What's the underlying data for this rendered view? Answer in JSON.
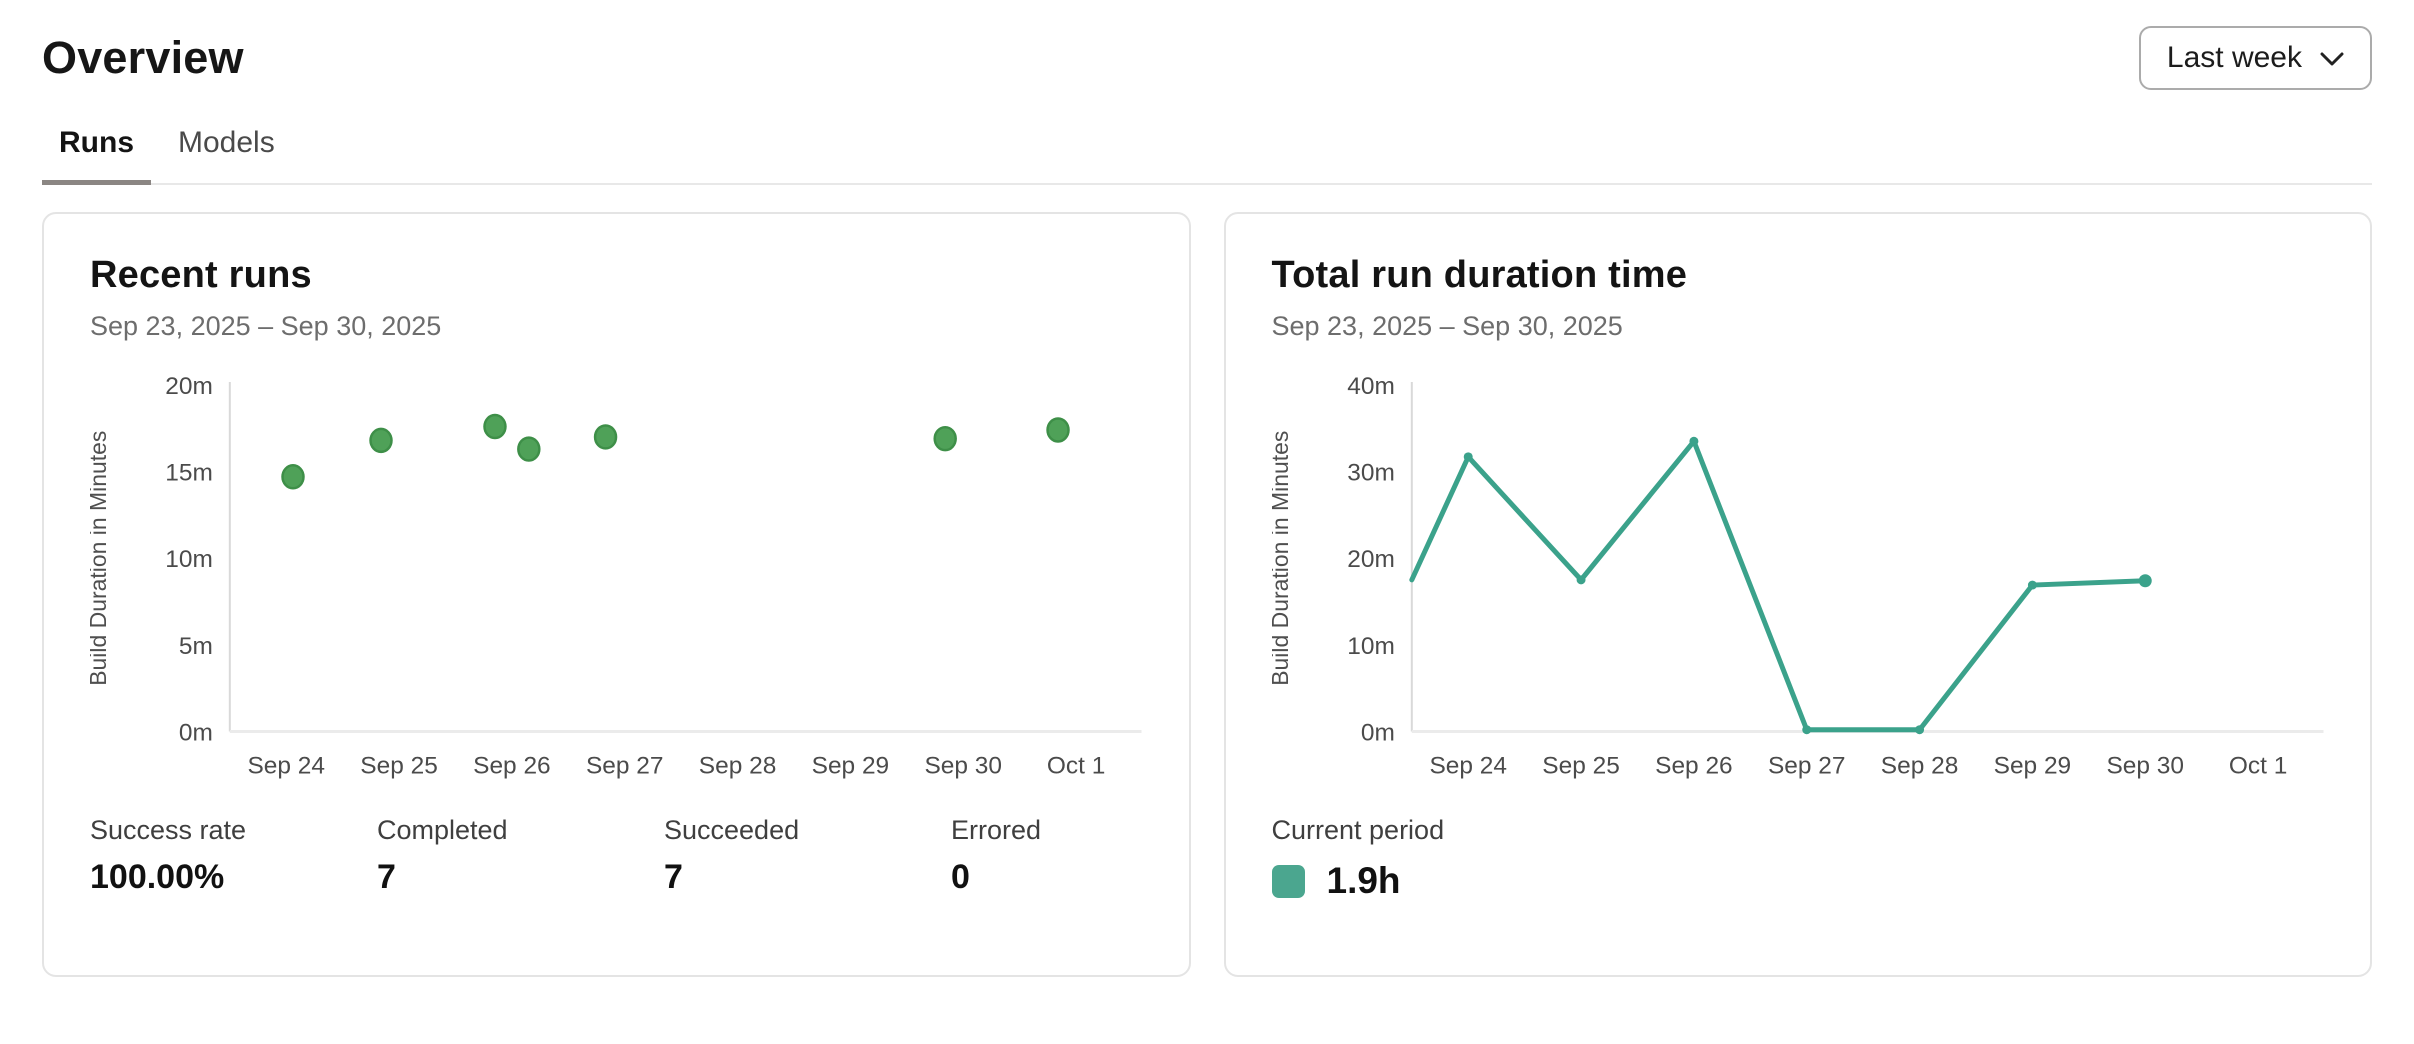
{
  "page": {
    "title": "Overview"
  },
  "period_selector": {
    "label": "Last week",
    "icon": "chevron-down-icon"
  },
  "tabs": [
    {
      "label": "Runs",
      "active": true
    },
    {
      "label": "Models",
      "active": false
    }
  ],
  "cards": {
    "recent_runs": {
      "title": "Recent runs",
      "date_range": "Sep 23, 2025 – Sep 30, 2025",
      "stats": [
        {
          "label": "Success rate",
          "value": "100.00%"
        },
        {
          "label": "Completed",
          "value": "7"
        },
        {
          "label": "Succeeded",
          "value": "7"
        },
        {
          "label": "Errored",
          "value": "0"
        }
      ]
    },
    "total_run_duration": {
      "title": "Total run duration time",
      "date_range": "Sep 23, 2025 – Sep 30, 2025",
      "legend": {
        "label": "Current period",
        "value": "1.9h",
        "color": "#4BA68F"
      }
    }
  },
  "chart_data": [
    {
      "id": "recent-runs-scatter",
      "type": "scatter",
      "title": "Recent runs",
      "xlabel": "",
      "ylabel": "Build Duration in Minutes",
      "unit": "minutes",
      "x_ticks": [
        "Sep 24",
        "Sep 25",
        "Sep 26",
        "Sep 27",
        "Sep 28",
        "Sep 29",
        "Sep 30",
        "Oct 1"
      ],
      "y_ticks": [
        "0m",
        "5m",
        "10m",
        "15m",
        "20m"
      ],
      "ylim": [
        0,
        20
      ],
      "grid": false,
      "point_color": "#4FA158",
      "point_stroke": "#3E8F48",
      "points": [
        {
          "day": "Sep 24",
          "day_index": 0,
          "offset": 0.06,
          "minutes": 14.7
        },
        {
          "day": "Sep 25",
          "day_index": 1,
          "offset": -0.16,
          "minutes": 16.8
        },
        {
          "day": "Sep 26",
          "day_index": 2,
          "offset": -0.15,
          "minutes": 17.6
        },
        {
          "day": "Sep 26",
          "day_index": 2,
          "offset": 0.15,
          "minutes": 16.3
        },
        {
          "day": "Sep 27",
          "day_index": 3,
          "offset": -0.17,
          "minutes": 17.0
        },
        {
          "day": "Sep 30",
          "day_index": 6,
          "offset": -0.16,
          "minutes": 16.9
        },
        {
          "day": "Oct 1",
          "day_index": 7,
          "offset": -0.16,
          "minutes": 17.4
        }
      ]
    },
    {
      "id": "total-duration-line",
      "type": "line",
      "title": "Total run duration time",
      "xlabel": "",
      "ylabel": "Build Duration in Minutes",
      "unit": "minutes",
      "x_ticks": [
        "Sep 24",
        "Sep 25",
        "Sep 26",
        "Sep 27",
        "Sep 28",
        "Sep 29",
        "Sep 30",
        "Oct 1"
      ],
      "y_ticks": [
        "0m",
        "10m",
        "20m",
        "30m",
        "40m"
      ],
      "ylim": [
        0,
        40
      ],
      "grid": false,
      "line_color": "#3BA28B",
      "points": [
        {
          "day": "Sep 23",
          "day_index": -0.5,
          "minutes": 17.5,
          "marker": false
        },
        {
          "day": "Sep 24",
          "day_index": 0,
          "minutes": 31.7
        },
        {
          "day": "Sep 25",
          "day_index": 1,
          "minutes": 17.5
        },
        {
          "day": "Sep 26",
          "day_index": 2,
          "minutes": 33.5
        },
        {
          "day": "Sep 27",
          "day_index": 3,
          "minutes": 0.2
        },
        {
          "day": "Sep 28",
          "day_index": 4,
          "minutes": 0.2
        },
        {
          "day": "Sep 29",
          "day_index": 5,
          "minutes": 16.9
        },
        {
          "day": "Sep 30",
          "day_index": 6,
          "minutes": 17.4,
          "end_marker": true
        }
      ]
    }
  ]
}
